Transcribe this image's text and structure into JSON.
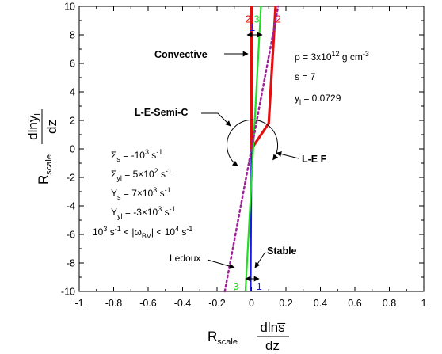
{
  "chart_data": {
    "type": "line",
    "xlim": [
      -1,
      1
    ],
    "ylim": [
      -10,
      10
    ],
    "x_ticks": [
      "-1",
      "-0.8",
      "-0.6",
      "-0.4",
      "-0.2",
      "0",
      "0.2",
      "0.4",
      "0.6",
      "0.8",
      "1"
    ],
    "y_ticks": [
      "-10",
      "-8",
      "-6",
      "-4",
      "-2",
      "0",
      "2",
      "4",
      "6",
      "8",
      "10"
    ],
    "xlabel": {
      "main": "R",
      "sub": "scale",
      "num": "dlns̅",
      "den": "dz"
    },
    "ylabel": {
      "main": "R",
      "sub": "scale",
      "num": "dlny̅",
      "num_sub": "l",
      "den": "dz"
    },
    "series": [
      {
        "label": "1",
        "color": "#1a1ae6",
        "style": "solid",
        "points": [
          [
            -0.005,
            -10
          ],
          [
            0.005,
            10
          ]
        ]
      },
      {
        "label": "2",
        "color": "#e01010",
        "style": "solid",
        "points": [
          [
            0,
            10
          ],
          [
            0,
            0
          ],
          [
            0.1,
            1.8
          ],
          [
            0.14,
            10
          ]
        ]
      },
      {
        "label": "3",
        "color": "#22dd22",
        "style": "solid",
        "points": [
          [
            -0.035,
            -10
          ],
          [
            0.055,
            10
          ]
        ]
      },
      {
        "label": "Ledoux",
        "color": "#a0209a",
        "style": "dotted",
        "points": [
          [
            -0.155,
            -10
          ],
          [
            0.155,
            10
          ]
        ]
      }
    ],
    "curve_labels": [
      {
        "text": "2",
        "x": -0.02,
        "y": 9.15,
        "color": "#e01010"
      },
      {
        "text": "3",
        "x": 0.03,
        "y": 9.15,
        "color": "#22dd22"
      },
      {
        "text": "2",
        "x": 0.155,
        "y": 9.15,
        "color": "#e01010"
      },
      {
        "text": "1",
        "x": 0.005,
        "y": 8.55,
        "color": "#1a1ae6"
      },
      {
        "text": "3",
        "x": -0.09,
        "y": -9.6,
        "color": "#22dd22"
      },
      {
        "text": "1",
        "x": 0.045,
        "y": -9.6,
        "color": "#1a1ae6"
      }
    ],
    "annotations": {
      "convective": "Convective",
      "lesemic": "L-E-Semi-C",
      "lef": "L-E F",
      "stable": "Stable",
      "ledoux": "Ledoux"
    },
    "params_right": [
      {
        "base": "ρ = 3x10",
        "sup": "12",
        "tail": " g cm",
        "tail_sup": "-3"
      },
      {
        "base": "s = 7"
      },
      {
        "base": "y",
        "sub": "l",
        "tail": " = 0.0729"
      }
    ],
    "params_left": [
      {
        "base": "Σ",
        "sub": "s",
        "tail": " = -10",
        "sup": "3",
        "unit": " s",
        "unit_sup": "-1"
      },
      {
        "base": "Σ",
        "sub": "yl",
        "tail": " = 5×10",
        "sup": "2",
        "unit": " s",
        "unit_sup": "-1"
      },
      {
        "base": "Υ",
        "sub": "s",
        "tail": " = 7×10",
        "sup": "3",
        "unit": " s",
        "unit_sup": "-1"
      },
      {
        "base": "Υ",
        "sub": "yl",
        "tail": " = -3×10",
        "sup": "3",
        "unit": " s",
        "unit_sup": "-1"
      },
      {
        "base": "10",
        "sup": "3",
        "tail": " s",
        "tail_sup": "-1",
        "rest": " < |ω",
        "rest_sub": "BV",
        "rest2": "| < 10",
        "rest2_sup": "4",
        "unit": " s",
        "unit_sup": "-1"
      }
    ]
  }
}
